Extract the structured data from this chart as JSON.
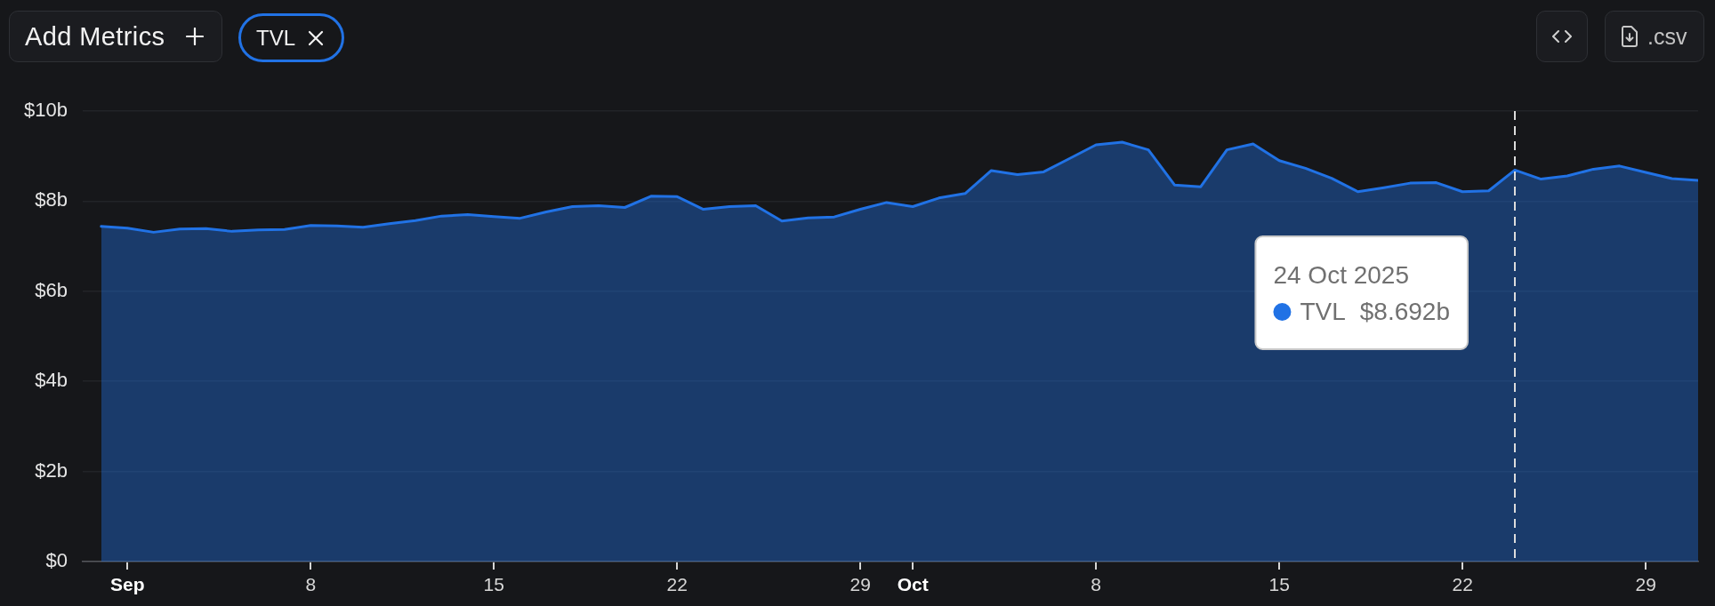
{
  "chart_data": {
    "type": "area",
    "x": [
      "2025-08-31",
      "2025-09-01",
      "2025-09-02",
      "2025-09-03",
      "2025-09-04",
      "2025-09-05",
      "2025-09-06",
      "2025-09-07",
      "2025-09-08",
      "2025-09-09",
      "2025-09-10",
      "2025-09-11",
      "2025-09-12",
      "2025-09-13",
      "2025-09-14",
      "2025-09-15",
      "2025-09-16",
      "2025-09-17",
      "2025-09-18",
      "2025-09-19",
      "2025-09-20",
      "2025-09-21",
      "2025-09-22",
      "2025-09-23",
      "2025-09-24",
      "2025-09-25",
      "2025-09-26",
      "2025-09-27",
      "2025-09-28",
      "2025-09-29",
      "2025-09-30",
      "2025-10-01",
      "2025-10-02",
      "2025-10-03",
      "2025-10-04",
      "2025-10-05",
      "2025-10-06",
      "2025-10-07",
      "2025-10-08",
      "2025-10-09",
      "2025-10-10",
      "2025-10-11",
      "2025-10-12",
      "2025-10-13",
      "2025-10-14",
      "2025-10-15",
      "2025-10-16",
      "2025-10-17",
      "2025-10-18",
      "2025-10-19",
      "2025-10-20",
      "2025-10-21",
      "2025-10-22",
      "2025-10-23",
      "2025-10-24",
      "2025-10-25",
      "2025-10-26",
      "2025-10-27",
      "2025-10-28",
      "2025-10-29",
      "2025-10-30",
      "2025-10-31"
    ],
    "series": [
      {
        "name": "TVL",
        "color": "#2172e5",
        "values": [
          7.44,
          7.4,
          7.31,
          7.38,
          7.39,
          7.33,
          7.36,
          7.37,
          7.46,
          7.45,
          7.42,
          7.5,
          7.57,
          7.67,
          7.7,
          7.66,
          7.62,
          7.76,
          7.88,
          7.9,
          7.86,
          8.11,
          8.1,
          7.82,
          7.88,
          7.9,
          7.56,
          7.63,
          7.65,
          7.82,
          7.97,
          7.88,
          8.07,
          8.17,
          8.68,
          8.59,
          8.65,
          8.95,
          9.25,
          9.31,
          9.14,
          8.36,
          8.32,
          9.14,
          9.27,
          8.9,
          8.73,
          8.51,
          8.21,
          8.3,
          8.4,
          8.41,
          8.21,
          8.23,
          8.692,
          8.49,
          8.56,
          8.71,
          8.78,
          8.64,
          8.5,
          8.46
        ]
      }
    ],
    "xlim": [
      "2025-08-30T07:00",
      "2025-10-31"
    ],
    "xticks": [
      {
        "value": "2025-09-01",
        "label": "Sep"
      },
      {
        "value": "2025-09-08",
        "label": "8"
      },
      {
        "value": "2025-09-15",
        "label": "15"
      },
      {
        "value": "2025-09-22",
        "label": "22"
      },
      {
        "value": "2025-09-29",
        "label": "29"
      },
      {
        "value": "2025-10-01",
        "label": "Oct"
      },
      {
        "value": "2025-10-08",
        "label": "8"
      },
      {
        "value": "2025-10-15",
        "label": "15"
      },
      {
        "value": "2025-10-22",
        "label": "22"
      },
      {
        "value": "2025-10-29",
        "label": "29"
      }
    ],
    "ylim": [
      0,
      10
    ],
    "yticks": [
      {
        "value": 0,
        "label": "$0"
      },
      {
        "value": 2,
        "label": "$2b"
      },
      {
        "value": 4,
        "label": "$4b"
      },
      {
        "value": 6,
        "label": "$6b"
      },
      {
        "value": 8,
        "label": "$8b"
      },
      {
        "value": 10,
        "label": "$10b"
      }
    ],
    "grid": "y",
    "ref_lines": [
      {
        "axis": "x",
        "value": "2025-10-24",
        "color": "#dcdcdc",
        "line_style": "dashed"
      }
    ],
    "annotations": [
      "Add Metrics",
      ".csv",
      "24 Oct 2025",
      "$8.692b"
    ]
  }
}
